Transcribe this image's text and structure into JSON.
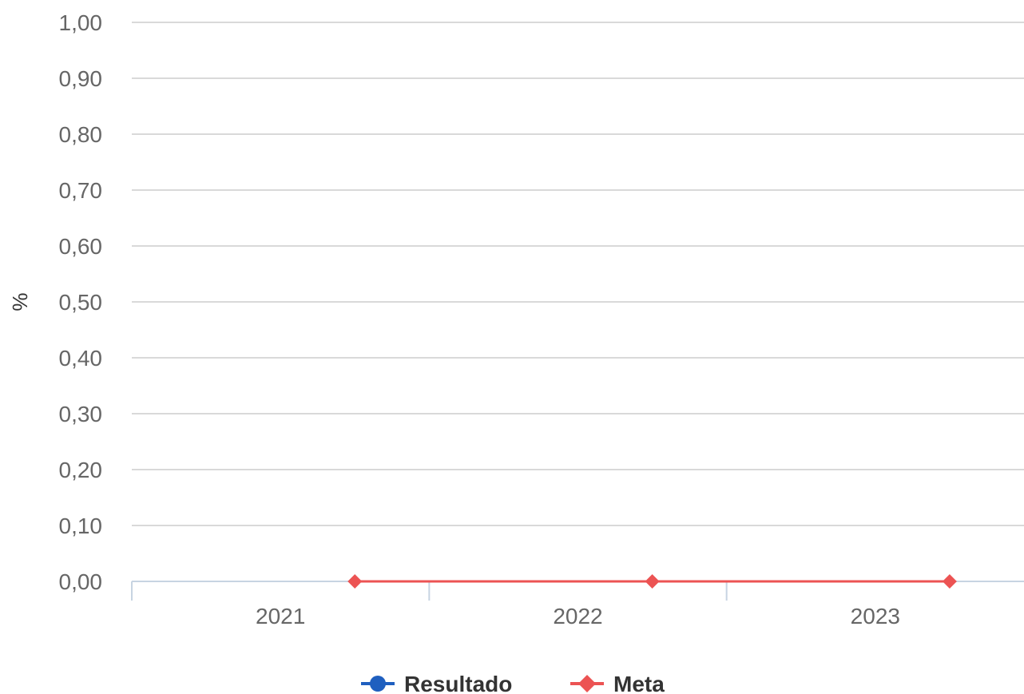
{
  "chart_data": {
    "type": "line",
    "categories": [
      "2021",
      "2022",
      "2023"
    ],
    "ylabel": "%",
    "ylim": [
      0,
      1
    ],
    "yticks": [
      "0,00",
      "0,10",
      "0,20",
      "0,30",
      "0,40",
      "0,50",
      "0,60",
      "0,70",
      "0,80",
      "0,90",
      "1,00"
    ],
    "grid": true,
    "legend": "bottom-center",
    "series": [
      {
        "name": "Resultado",
        "color": "#1f5fbf",
        "marker": "circle",
        "values": [
          null,
          null,
          null
        ]
      },
      {
        "name": "Meta",
        "color": "#ec5353",
        "marker": "diamond",
        "values": [
          0,
          0,
          0
        ]
      }
    ]
  }
}
